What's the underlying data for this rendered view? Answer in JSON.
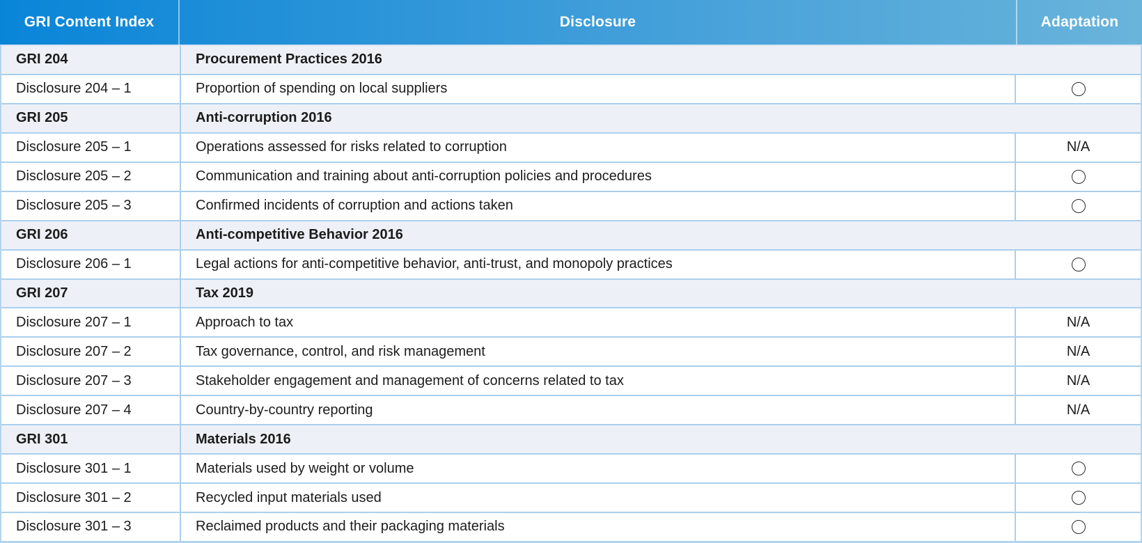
{
  "table": {
    "columns": [
      {
        "label": "GRI Content Index"
      },
      {
        "label": "Disclosure"
      },
      {
        "label": "Adaptation"
      }
    ],
    "colors": {
      "header_gradient_left": "#0985d8",
      "header_gradient_right": "#69b4db",
      "header_text": "#ffffff",
      "section_row_bg": "#edf1f7",
      "row_bg": "#ffffff",
      "row_border": "#abcfec",
      "outer_border": "#b3d4ee",
      "body_text": "#1c1c1c"
    },
    "adaptation_symbols": {
      "circle": "○",
      "na": "N/A"
    },
    "sections": [
      {
        "code": "GRI 204",
        "title": "Procurement Practices 2016",
        "rows": [
          {
            "id": "Disclosure 204 – 1",
            "disclosure": "Proportion of spending on local suppliers",
            "adaptation": "circle"
          }
        ]
      },
      {
        "code": "GRI 205",
        "title": "Anti-corruption 2016",
        "rows": [
          {
            "id": "Disclosure 205 – 1",
            "disclosure": "Operations assessed for risks related to corruption",
            "adaptation": "N/A"
          },
          {
            "id": "Disclosure 205 – 2",
            "disclosure": "Communication and training about anti-corruption policies and procedures",
            "adaptation": "circle"
          },
          {
            "id": "Disclosure 205 – 3",
            "disclosure": "Confirmed incidents of corruption and actions taken",
            "adaptation": "circle"
          }
        ]
      },
      {
        "code": "GRI 206",
        "title": "Anti-competitive Behavior 2016",
        "rows": [
          {
            "id": "Disclosure 206 – 1",
            "disclosure": "Legal actions for anti-competitive behavior, anti-trust, and monopoly practices",
            "adaptation": "circle"
          }
        ]
      },
      {
        "code": "GRI 207",
        "title": "Tax 2019",
        "rows": [
          {
            "id": "Disclosure 207 – 1",
            "disclosure": "Approach to tax",
            "adaptation": "N/A"
          },
          {
            "id": "Disclosure 207 – 2",
            "disclosure": "Tax governance, control, and risk management",
            "adaptation": "N/A"
          },
          {
            "id": "Disclosure 207 – 3",
            "disclosure": "Stakeholder engagement and management of concerns related to tax",
            "adaptation": "N/A"
          },
          {
            "id": "Disclosure 207 – 4",
            "disclosure": "Country-by-country reporting",
            "adaptation": "N/A"
          }
        ]
      },
      {
        "code": "GRI 301",
        "title": "Materials 2016",
        "rows": [
          {
            "id": "Disclosure 301 – 1",
            "disclosure": "Materials used by weight or volume",
            "adaptation": "circle"
          },
          {
            "id": "Disclosure 301 – 2",
            "disclosure": "Recycled input materials used",
            "adaptation": "circle"
          },
          {
            "id": "Disclosure 301 – 3",
            "disclosure": "Reclaimed products and their packaging materials",
            "adaptation": "circle"
          }
        ]
      }
    ]
  }
}
